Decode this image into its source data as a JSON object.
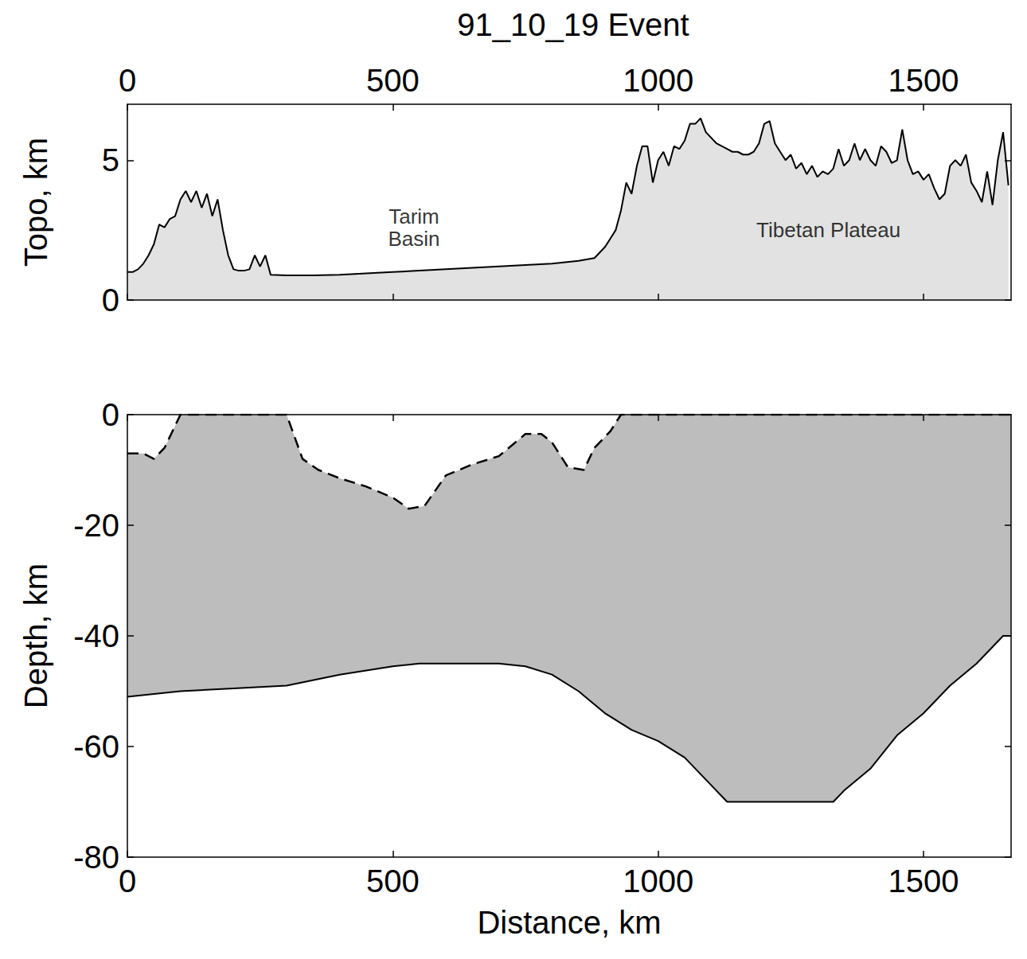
{
  "chart_data": [
    {
      "type": "area",
      "title": "91_10_19 Event",
      "ylabel": "Topo, km",
      "xlim": [
        0,
        1665
      ],
      "xticks": [
        0,
        500,
        1000,
        1500
      ],
      "ylim": [
        0,
        7
      ],
      "yticks": [
        0,
        5
      ],
      "grid": false,
      "annotations": [
        {
          "text": "Tarim\nBasin",
          "x": 540,
          "y": 2.6
        },
        {
          "text": "Tibetan Plateau",
          "x": 1321,
          "y": 2.5
        }
      ],
      "series": [
        {
          "color": "#000000",
          "line_style": "solid",
          "x": [
            0,
            10,
            20,
            30,
            40,
            50,
            60,
            70,
            80,
            90,
            100,
            110,
            120,
            130,
            140,
            150,
            160,
            170,
            180,
            190,
            200,
            210,
            220,
            230,
            240,
            250,
            260,
            270,
            300,
            350,
            400,
            450,
            500,
            550,
            600,
            650,
            700,
            750,
            800,
            850,
            880,
            890,
            900,
            910,
            920,
            930,
            940,
            950,
            960,
            970,
            980,
            990,
            1000,
            1010,
            1020,
            1030,
            1040,
            1050,
            1060,
            1070,
            1080,
            1090,
            1100,
            1110,
            1120,
            1130,
            1140,
            1150,
            1160,
            1170,
            1180,
            1190,
            1200,
            1210,
            1220,
            1230,
            1240,
            1250,
            1260,
            1270,
            1280,
            1290,
            1300,
            1310,
            1320,
            1330,
            1340,
            1350,
            1360,
            1370,
            1380,
            1390,
            1400,
            1410,
            1420,
            1430,
            1440,
            1450,
            1460,
            1470,
            1480,
            1490,
            1500,
            1510,
            1520,
            1530,
            1540,
            1550,
            1560,
            1570,
            1580,
            1590,
            1600,
            1610,
            1620,
            1630,
            1640,
            1650,
            1660
          ],
          "values": [
            1.0,
            1.0,
            1.1,
            1.3,
            1.6,
            2.0,
            2.7,
            2.6,
            2.9,
            3.0,
            3.6,
            3.9,
            3.5,
            3.9,
            3.3,
            3.8,
            3.0,
            3.6,
            2.5,
            1.6,
            1.1,
            1.05,
            1.05,
            1.1,
            1.6,
            1.2,
            1.6,
            0.9,
            0.88,
            0.88,
            0.9,
            0.95,
            1.0,
            1.05,
            1.1,
            1.15,
            1.2,
            1.25,
            1.3,
            1.4,
            1.5,
            1.7,
            1.9,
            2.2,
            2.5,
            3.2,
            4.2,
            3.8,
            4.8,
            5.5,
            5.5,
            4.2,
            5.0,
            5.3,
            4.8,
            5.5,
            5.4,
            5.7,
            6.3,
            6.3,
            6.5,
            6.0,
            5.8,
            5.6,
            5.5,
            5.4,
            5.3,
            5.3,
            5.2,
            5.2,
            5.3,
            5.6,
            6.3,
            6.4,
            5.6,
            5.3,
            5.0,
            5.2,
            4.7,
            4.9,
            4.5,
            4.8,
            4.4,
            4.6,
            4.5,
            4.7,
            5.4,
            4.8,
            5.0,
            5.6,
            5.0,
            5.4,
            5.0,
            4.8,
            5.5,
            5.3,
            4.9,
            5.0,
            6.1,
            5.0,
            4.5,
            4.6,
            4.3,
            4.5,
            4.0,
            3.6,
            3.8,
            4.8,
            5.0,
            4.8,
            5.2,
            4.2,
            3.9,
            3.5,
            4.6,
            3.4,
            5.0,
            6.0,
            4.1
          ]
        }
      ]
    },
    {
      "type": "area",
      "xlabel": "Distance, km",
      "ylabel": "Depth, km",
      "xlim": [
        0,
        1665
      ],
      "xticks": [
        0,
        500,
        1000,
        1500
      ],
      "ylim": [
        -80,
        0
      ],
      "yticks": [
        -80,
        -60,
        -40,
        -20,
        0
      ],
      "grid": false,
      "series": [
        {
          "color": "#000000",
          "line_style": "solid",
          "x": [
            0,
            50,
            100,
            200,
            300,
            400,
            500,
            550,
            700,
            750,
            800,
            850,
            900,
            950,
            1000,
            1050,
            1100,
            1130,
            1330,
            1350,
            1400,
            1450,
            1500,
            1550,
            1600,
            1650,
            1665
          ],
          "values": [
            -51,
            -50.5,
            -50,
            -49.5,
            -49,
            -47,
            -45.5,
            -45,
            -45,
            -45.5,
            -47,
            -50,
            -54,
            -57,
            -59,
            -62,
            -67,
            -70,
            -70,
            -68,
            -64,
            -58,
            -54,
            -49,
            -45,
            -40,
            -40
          ]
        },
        {
          "color": "#000000",
          "line_style": "dashed",
          "x": [
            0,
            30,
            50,
            70,
            90,
            100,
            300,
            330,
            360,
            400,
            450,
            500,
            530,
            560,
            600,
            650,
            700,
            750,
            780,
            800,
            830,
            860,
            880,
            910,
            930,
            1665
          ],
          "values": [
            -7,
            -7,
            -8,
            -6,
            -2,
            0,
            0,
            -8,
            -10,
            -11.5,
            -13,
            -15,
            -17,
            -16.5,
            -11,
            -9,
            -7.5,
            -3.5,
            -3.5,
            -5,
            -9.5,
            -10,
            -6,
            -3,
            0,
            0
          ]
        }
      ]
    }
  ]
}
